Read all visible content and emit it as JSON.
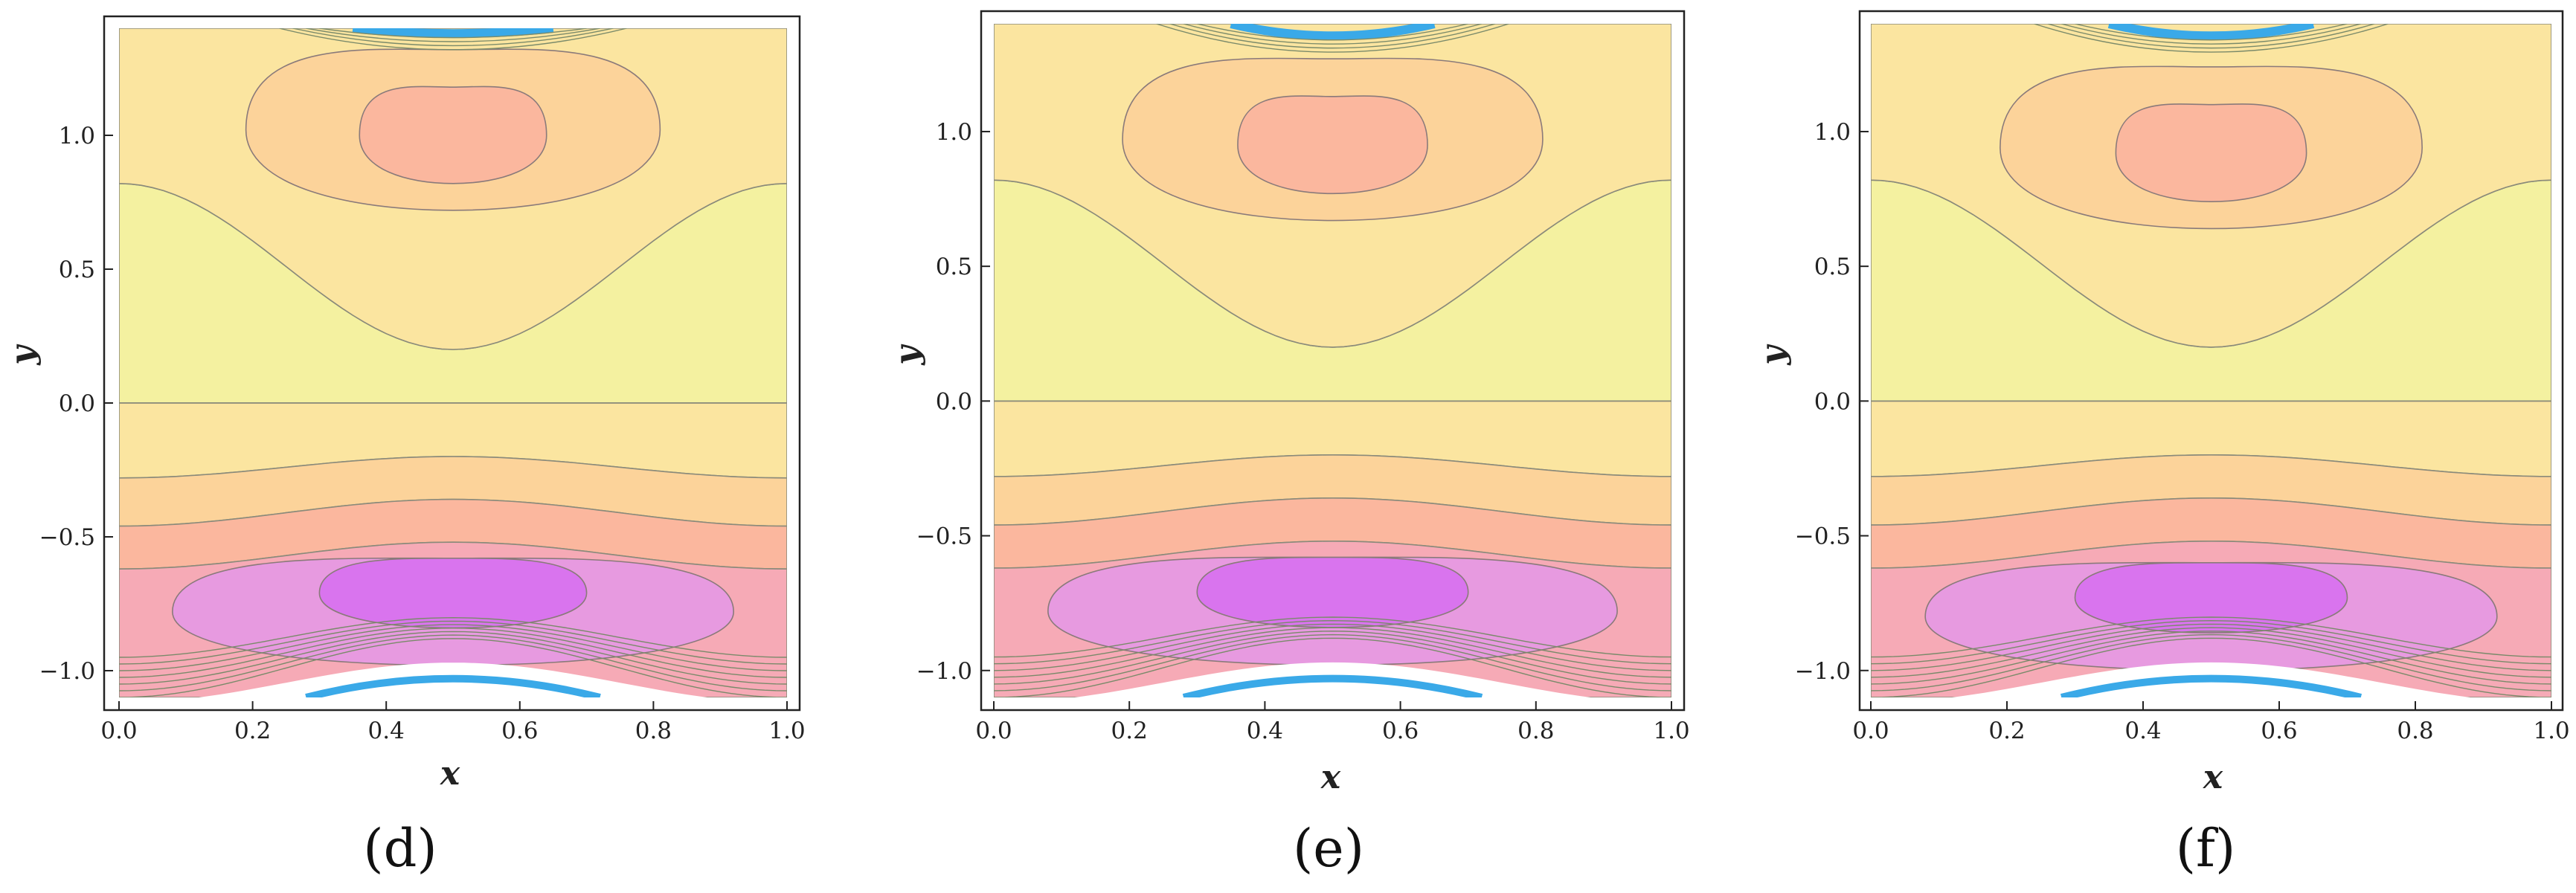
{
  "chart_data": [
    {
      "type": "contour",
      "panel_label": "(d)",
      "xlabel": "x",
      "ylabel": "y",
      "xlim": [
        0.0,
        1.0
      ],
      "ylim": [
        -1.1,
        1.4
      ],
      "x_ticks": [
        "0.0",
        "0.2",
        "0.4",
        "0.6",
        "0.8",
        "1.0"
      ],
      "y_ticks": [
        "-1.0",
        "-0.5",
        "0.0",
        "0.5",
        "1.0"
      ],
      "upper_vortex_center": [
        0.5,
        1.0
      ],
      "upper_vortex_min_y": 0.75,
      "lower_vortex_center": [
        0.5,
        -0.68
      ],
      "lower_vortex_top_y": -0.55,
      "top_wall_min_y": 1.38,
      "bottom_wall_max_y": -0.98,
      "colors": {
        "band_outer": "#fbe5a0",
        "band_mid": "#fcd39a",
        "band_inner": "#fbb79e",
        "band_center": "#f7a8a0",
        "band_light_pink": "#f6aab6",
        "band_lilac": "#e79ae0",
        "band_purple": "#d974ee",
        "center_yellow": "#f4f1a0",
        "wall_blue": "#3aa9e8"
      }
    },
    {
      "type": "contour",
      "panel_label": "(e)",
      "xlabel": "x",
      "ylabel": "y",
      "xlim": [
        0.0,
        1.0
      ],
      "ylim": [
        -1.1,
        1.4
      ],
      "x_ticks": [
        "0.0",
        "0.2",
        "0.4",
        "0.6",
        "0.8",
        "1.0"
      ],
      "y_ticks": [
        "-1.0",
        "-0.5",
        "0.0",
        "0.5",
        "1.0"
      ],
      "upper_vortex_center": [
        0.5,
        0.95
      ],
      "upper_vortex_min_y": 0.72,
      "lower_vortex_center": [
        0.5,
        -0.68
      ],
      "lower_vortex_top_y": -0.53,
      "top_wall_min_y": 1.33,
      "bottom_wall_max_y": -0.98,
      "colors": {
        "band_outer": "#fbe5a0",
        "band_mid": "#fcd39a",
        "band_inner": "#fbb79e",
        "band_center": "#f7a8a0",
        "band_light_pink": "#f6aab6",
        "band_lilac": "#e79ae0",
        "band_purple": "#d974ee",
        "center_yellow": "#f4f1a0",
        "wall_blue": "#3aa9e8"
      }
    },
    {
      "type": "contour",
      "panel_label": "(f)",
      "xlabel": "x",
      "ylabel": "y",
      "xlim": [
        0.0,
        1.0
      ],
      "ylim": [
        -1.1,
        1.4
      ],
      "x_ticks": [
        "0.0",
        "0.2",
        "0.4",
        "0.6",
        "0.8",
        "1.0"
      ],
      "y_ticks": [
        "-1.0",
        "-0.5",
        "0.0",
        "0.5",
        "1.0"
      ],
      "upper_vortex_center": [
        0.5,
        0.92
      ],
      "upper_vortex_min_y": 0.72,
      "lower_vortex_center": [
        0.5,
        -0.7
      ],
      "lower_vortex_top_y": -0.55,
      "top_wall_min_y": 1.33,
      "bottom_wall_max_y": -0.98,
      "colors": {
        "band_outer": "#fbe5a0",
        "band_mid": "#fcd39a",
        "band_inner": "#fbb79e",
        "band_center": "#f7a8a0",
        "band_light_pink": "#f6aab6",
        "band_lilac": "#e79ae0",
        "band_purple": "#d974ee",
        "center_yellow": "#f4f1a0",
        "wall_blue": "#3aa9e8"
      }
    }
  ]
}
